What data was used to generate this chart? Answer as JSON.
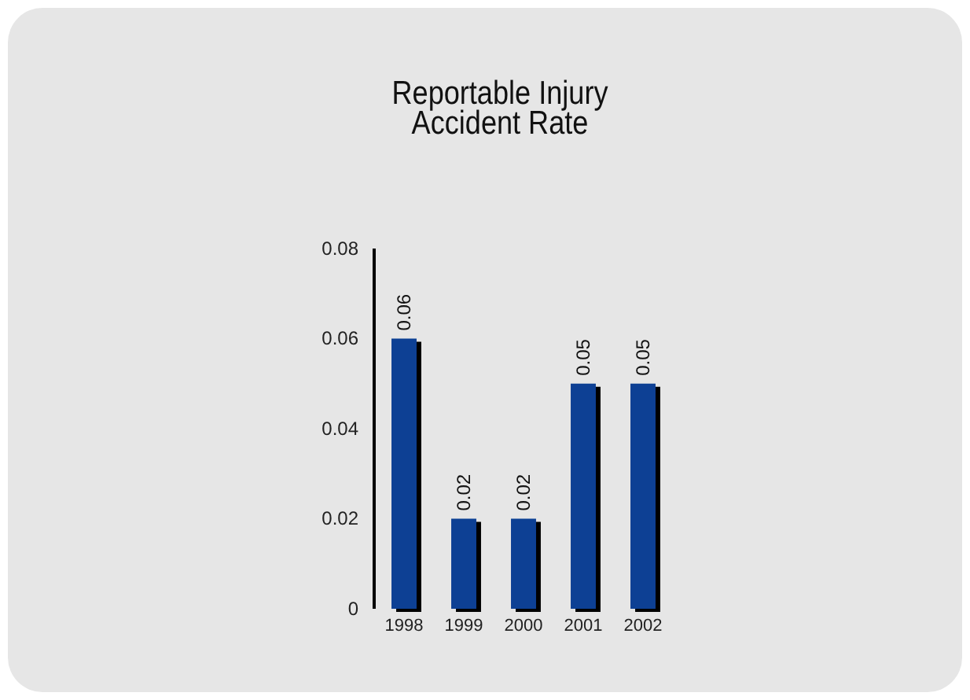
{
  "chart_data": {
    "type": "bar",
    "title": "Reportable Injury Accident Rate",
    "categories": [
      "1998",
      "1999",
      "2000",
      "2001",
      "2002"
    ],
    "values": [
      0.06,
      0.02,
      0.02,
      0.05,
      0.05
    ],
    "color": "#0b3f94",
    "ylim": [
      0,
      0.08
    ],
    "yticks": [
      0,
      0.02,
      0.04,
      0.06,
      0.08
    ],
    "grid": false,
    "data_labels": true
  }
}
